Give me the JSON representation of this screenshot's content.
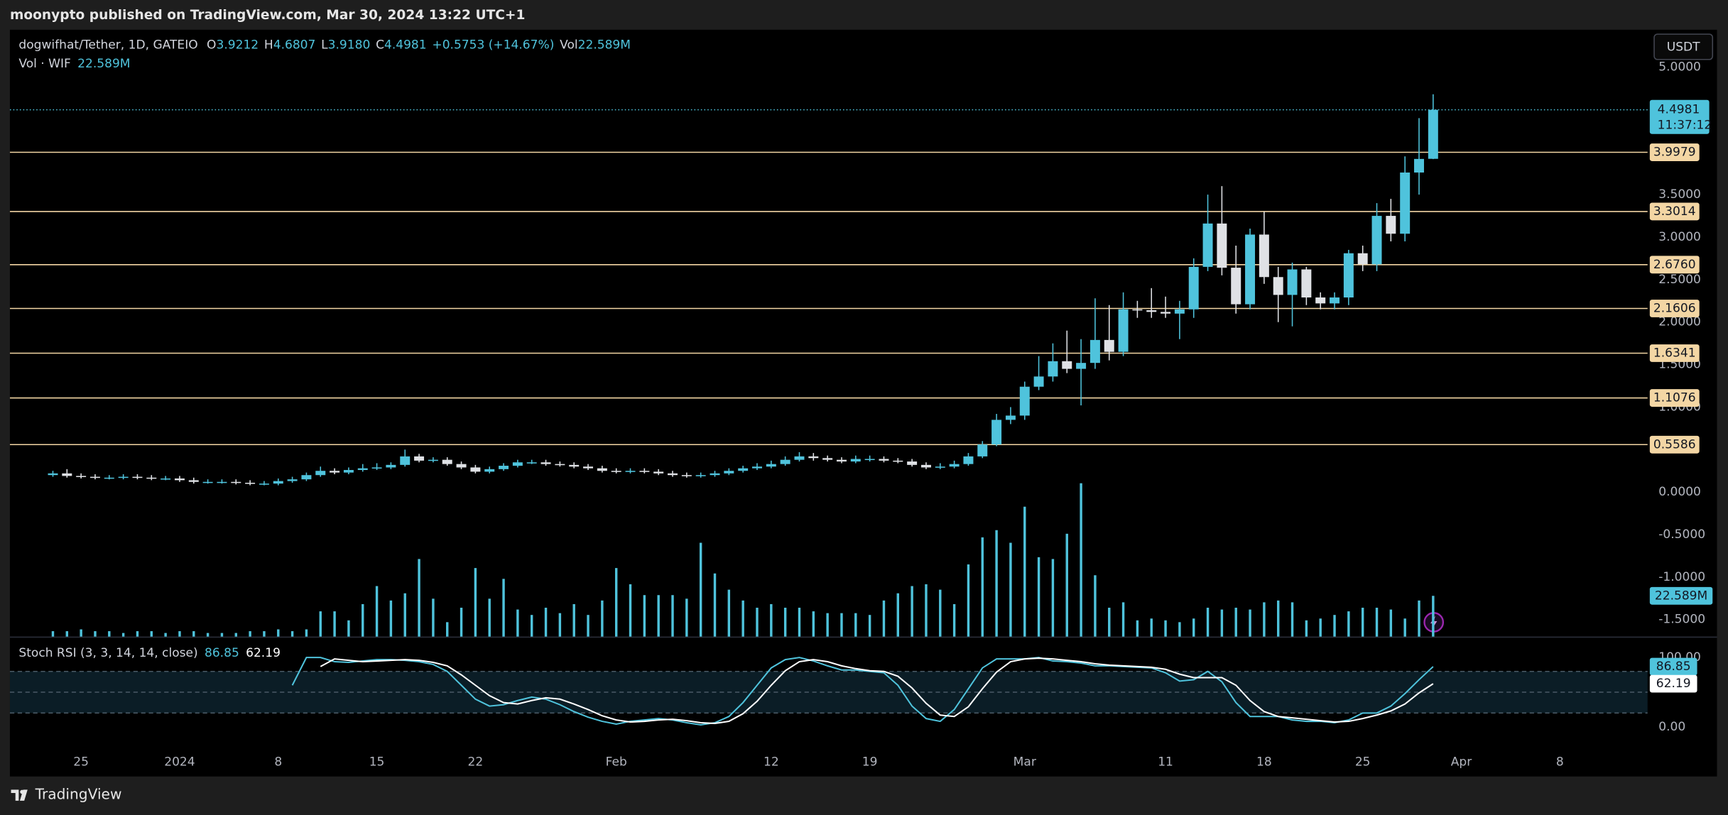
{
  "published": "moonypto published on TradingView.com, Mar 30, 2024 13:22 UTC+1",
  "footer": "TradingView",
  "currency": "USDT",
  "chart_data": {
    "type": "candlestick",
    "title": "dogwifhat/Tether, 1D, GATEIO",
    "legend_items": [
      {
        "key": "O",
        "value": "3.9212"
      },
      {
        "key": "H",
        "value": "4.6807"
      },
      {
        "key": "L",
        "value": "3.9180"
      },
      {
        "key": "C",
        "value": "4.4981"
      }
    ],
    "change": "+0.5753 (+14.67%)",
    "volume_key": "Vol",
    "categories": [
      null,
      null,
      "25",
      null,
      null,
      null,
      null,
      null,
      null,
      "2024",
      null,
      null,
      null,
      null,
      null,
      null,
      "8",
      null,
      null,
      null,
      null,
      null,
      null,
      "15",
      null,
      null,
      null,
      null,
      null,
      null,
      "22",
      null,
      null,
      null,
      null,
      null,
      null,
      null,
      null,
      null,
      "Feb",
      null,
      null,
      null,
      null,
      null,
      null,
      null,
      null,
      null,
      null,
      "12",
      null,
      null,
      null,
      null,
      null,
      null,
      "19",
      null,
      null,
      null,
      null,
      null,
      null,
      null,
      null,
      null,
      null,
      "Mar",
      null,
      null,
      null,
      null,
      null,
      null,
      null,
      null,
      null,
      "11",
      null,
      null,
      null,
      null,
      null,
      null,
      "18",
      null,
      null,
      null,
      null,
      null,
      null,
      "25",
      null,
      null,
      null,
      null,
      null,
      null,
      "Apr",
      null,
      null,
      null,
      null,
      null,
      null,
      "8",
      null,
      null,
      null,
      null,
      null,
      null
    ],
    "open": [
      0.2,
      0.22,
      0.19,
      0.18,
      0.17,
      0.17,
      0.18,
      0.17,
      0.16,
      0.16,
      0.14,
      0.12,
      0.12,
      0.12,
      0.11,
      0.1,
      0.1,
      0.13,
      0.15,
      0.2,
      0.25,
      0.23,
      0.26,
      0.28,
      0.29,
      0.32,
      0.42,
      0.37,
      0.38,
      0.33,
      0.29,
      0.24,
      0.27,
      0.31,
      0.35,
      0.35,
      0.33,
      0.32,
      0.3,
      0.28,
      0.25,
      0.24,
      0.25,
      0.24,
      0.22,
      0.2,
      0.19,
      0.2,
      0.22,
      0.25,
      0.28,
      0.3,
      0.33,
      0.38,
      0.42,
      0.4,
      0.38,
      0.36,
      0.39,
      0.39,
      0.37,
      0.36,
      0.32,
      0.29,
      0.3,
      0.33,
      0.42,
      0.56,
      0.85,
      0.9,
      1.24,
      1.36,
      1.54,
      1.45,
      1.52,
      1.79,
      1.65,
      2.15,
      2.14,
      2.12,
      2.1,
      2.15,
      2.65,
      3.16,
      2.64,
      2.21,
      3.03,
      2.53,
      2.32,
      2.62,
      2.29,
      2.22,
      2.29,
      2.81,
      2.68,
      3.25,
      3.04,
      3.76,
      3.9212,
      null,
      null,
      null,
      null,
      null,
      null,
      null,
      null,
      null,
      null,
      null,
      null,
      null,
      null,
      null
    ],
    "high": [
      0.25,
      0.27,
      0.22,
      0.21,
      0.2,
      0.21,
      0.21,
      0.2,
      0.19,
      0.19,
      0.17,
      0.15,
      0.15,
      0.15,
      0.14,
      0.13,
      0.16,
      0.18,
      0.23,
      0.3,
      0.28,
      0.29,
      0.33,
      0.34,
      0.35,
      0.5,
      0.45,
      0.41,
      0.41,
      0.36,
      0.32,
      0.3,
      0.34,
      0.38,
      0.38,
      0.38,
      0.36,
      0.35,
      0.33,
      0.31,
      0.28,
      0.28,
      0.28,
      0.27,
      0.25,
      0.23,
      0.23,
      0.25,
      0.28,
      0.31,
      0.34,
      0.37,
      0.42,
      0.47,
      0.46,
      0.43,
      0.41,
      0.43,
      0.43,
      0.42,
      0.4,
      0.39,
      0.35,
      0.34,
      0.37,
      0.46,
      0.6,
      0.92,
      1.0,
      1.3,
      1.6,
      1.75,
      1.9,
      1.8,
      2.28,
      2.2,
      2.35,
      2.25,
      2.4,
      2.3,
      2.25,
      2.75,
      3.5,
      3.6,
      2.9,
      3.1,
      3.3,
      2.65,
      2.7,
      2.65,
      2.35,
      2.35,
      2.85,
      2.9,
      3.4,
      3.45,
      3.95,
      4.4,
      4.6807,
      null,
      null,
      null,
      null,
      null,
      null,
      null,
      null,
      null,
      null,
      null,
      null,
      null,
      null,
      null
    ],
    "low": [
      0.18,
      0.17,
      0.16,
      0.15,
      0.15,
      0.15,
      0.15,
      0.14,
      0.14,
      0.12,
      0.1,
      0.1,
      0.1,
      0.09,
      0.08,
      0.08,
      0.08,
      0.11,
      0.13,
      0.18,
      0.21,
      0.21,
      0.24,
      0.26,
      0.27,
      0.3,
      0.35,
      0.35,
      0.31,
      0.27,
      0.22,
      0.22,
      0.25,
      0.29,
      0.33,
      0.31,
      0.3,
      0.28,
      0.26,
      0.23,
      0.22,
      0.22,
      0.22,
      0.2,
      0.18,
      0.17,
      0.17,
      0.18,
      0.2,
      0.23,
      0.26,
      0.28,
      0.31,
      0.36,
      0.37,
      0.36,
      0.34,
      0.34,
      0.36,
      0.35,
      0.34,
      0.3,
      0.27,
      0.27,
      0.28,
      0.31,
      0.4,
      0.54,
      0.8,
      0.85,
      1.2,
      1.3,
      1.4,
      1.02,
      1.45,
      1.55,
      1.6,
      2.05,
      2.05,
      2.05,
      1.8,
      2.05,
      2.6,
      2.55,
      2.1,
      2.15,
      2.45,
      2.0,
      1.95,
      2.2,
      2.15,
      2.15,
      2.2,
      2.6,
      2.6,
      2.95,
      2.95,
      3.5,
      3.918,
      null,
      null,
      null,
      null,
      null,
      null,
      null,
      null,
      null,
      null,
      null,
      null,
      null,
      null,
      null
    ],
    "close": [
      0.22,
      0.19,
      0.18,
      0.17,
      0.17,
      0.18,
      0.17,
      0.16,
      0.16,
      0.14,
      0.12,
      0.12,
      0.12,
      0.11,
      0.1,
      0.1,
      0.13,
      0.15,
      0.2,
      0.25,
      0.23,
      0.26,
      0.28,
      0.29,
      0.32,
      0.42,
      0.37,
      0.38,
      0.33,
      0.29,
      0.24,
      0.27,
      0.31,
      0.35,
      0.35,
      0.33,
      0.32,
      0.3,
      0.28,
      0.25,
      0.24,
      0.25,
      0.24,
      0.22,
      0.2,
      0.19,
      0.2,
      0.22,
      0.25,
      0.28,
      0.3,
      0.33,
      0.38,
      0.42,
      0.4,
      0.38,
      0.36,
      0.39,
      0.39,
      0.37,
      0.36,
      0.32,
      0.29,
      0.3,
      0.33,
      0.42,
      0.56,
      0.85,
      0.9,
      1.24,
      1.36,
      1.54,
      1.45,
      1.52,
      1.79,
      1.65,
      2.15,
      2.14,
      2.12,
      2.1,
      2.15,
      2.65,
      3.16,
      2.64,
      2.21,
      3.03,
      2.53,
      2.32,
      2.62,
      2.29,
      2.22,
      2.29,
      2.81,
      2.68,
      3.25,
      3.04,
      3.76,
      3.92,
      4.4981,
      null,
      null,
      null,
      null,
      null,
      null,
      null,
      null,
      null,
      null,
      null,
      null,
      null,
      null,
      null
    ],
    "up_color": "#4fc3dc",
    "down_color": "#dfe1e5",
    "ylim": [
      -1.7,
      5.44
    ],
    "yticks": [
      {
        "value": 5,
        "label": "5.0000"
      },
      {
        "value": 3.5,
        "label": "3.5000"
      },
      {
        "value": 3,
        "label": "3.0000"
      },
      {
        "value": 2.5,
        "label": "2.5000"
      },
      {
        "value": 2,
        "label": "2.0000"
      },
      {
        "value": 1.5,
        "label": "1.5000"
      },
      {
        "value": 1,
        "label": "1.0000"
      },
      {
        "value": 0,
        "label": "0.0000"
      },
      {
        "value": -0.5,
        "label": "-0.5000"
      },
      {
        "value": -1,
        "label": "-1.0000"
      },
      {
        "value": -1.5,
        "label": "-1.5000"
      }
    ],
    "price_lines": [
      {
        "value": 3.9979,
        "label": "3.9979"
      },
      {
        "value": 3.3014,
        "label": "3.3014"
      },
      {
        "value": 2.676,
        "label": "2.6760"
      },
      {
        "value": 2.1606,
        "label": "2.1606"
      },
      {
        "value": 1.6341,
        "label": "1.6341"
      },
      {
        "value": 1.1076,
        "label": "1.1076"
      },
      {
        "value": 0.5586,
        "label": "0.5586"
      }
    ],
    "price_line_color": "#f3d6a4",
    "countdown": "11:37:12",
    "volume": {
      "name": "Vol · WIF",
      "value_label": "22.589M",
      "color": "#4fc3dc",
      "ylim": [
        0,
        100
      ],
      "values": [
        3,
        3,
        4,
        3,
        3,
        2,
        3,
        3,
        2,
        3,
        3,
        2,
        2,
        2,
        3,
        3,
        4,
        3,
        4,
        14,
        14,
        9,
        18,
        28,
        20,
        24,
        43,
        21,
        8,
        16,
        38,
        21,
        32,
        15,
        12,
        16,
        13,
        18,
        12,
        20,
        38,
        29,
        23,
        23,
        23,
        21,
        52,
        35,
        26,
        20,
        16,
        18,
        16,
        16,
        14,
        13,
        13,
        13,
        12,
        20,
        24,
        28,
        29,
        26,
        18,
        40,
        55,
        59,
        52,
        72,
        44,
        43,
        57,
        85,
        34,
        16,
        19,
        9,
        10,
        9,
        8,
        10,
        16,
        15,
        16,
        15,
        19,
        20,
        19,
        9,
        10,
        12,
        14,
        16,
        16,
        15,
        10,
        20,
        22.589,
        null,
        null,
        null,
        null,
        null,
        null,
        null,
        null,
        null,
        null,
        null,
        null,
        null,
        null,
        null
      ]
    },
    "stoch": {
      "name": "Stoch RSI (3, 3, 14, 14, close)",
      "ylim": [
        -28.6,
        128.6
      ],
      "yticks": [
        {
          "value": 100,
          "label": "100.00"
        },
        {
          "value": 0,
          "label": "0.00"
        }
      ],
      "levels": [
        20,
        50,
        80
      ],
      "series": [
        {
          "color": "#4fc3dc",
          "values": [
            null,
            null,
            null,
            null,
            null,
            null,
            null,
            null,
            null,
            null,
            null,
            null,
            null,
            null,
            null,
            null,
            null,
            60,
            100,
            100,
            94,
            93,
            95,
            97,
            97,
            96,
            94,
            90,
            80,
            60,
            40,
            30,
            32,
            38,
            43,
            40,
            32,
            22,
            14,
            8,
            4,
            8,
            10,
            12,
            10,
            6,
            3,
            6,
            15,
            35,
            60,
            85,
            97,
            100,
            95,
            88,
            82,
            82,
            80,
            78,
            60,
            30,
            12,
            8,
            25,
            55,
            85,
            98,
            98,
            98,
            100,
            95,
            94,
            92,
            88,
            88,
            87,
            86,
            85,
            78,
            66,
            68,
            80,
            65,
            35,
            15,
            15,
            15,
            10,
            8,
            8,
            6,
            10,
            20,
            20,
            30,
            48,
            68,
            86.85,
            null,
            null,
            null,
            null,
            null,
            null,
            null,
            null,
            null,
            null,
            null,
            null,
            null,
            null,
            null
          ]
        },
        {
          "color": "#ffffff",
          "values": [
            null,
            null,
            null,
            null,
            null,
            null,
            null,
            null,
            null,
            null,
            null,
            null,
            null,
            null,
            null,
            null,
            null,
            null,
            null,
            87,
            98,
            96,
            94,
            95,
            96,
            97,
            96,
            93,
            88,
            75,
            60,
            45,
            35,
            33,
            38,
            42,
            40,
            33,
            25,
            16,
            10,
            7,
            8,
            10,
            11,
            9,
            6,
            5,
            8,
            19,
            37,
            60,
            81,
            94,
            97,
            94,
            88,
            84,
            81,
            80,
            73,
            56,
            34,
            17,
            15,
            29,
            55,
            79,
            94,
            98,
            99,
            98,
            96,
            94,
            91,
            89,
            88,
            87,
            86,
            83,
            76,
            71,
            71,
            71,
            60,
            38,
            22,
            15,
            13,
            11,
            9,
            7,
            8,
            12,
            17,
            23,
            33,
            49,
            62.19,
            null,
            null,
            null,
            null,
            null,
            null,
            null,
            null,
            null,
            null,
            null,
            null,
            null,
            null,
            null
          ]
        }
      ]
    }
  }
}
